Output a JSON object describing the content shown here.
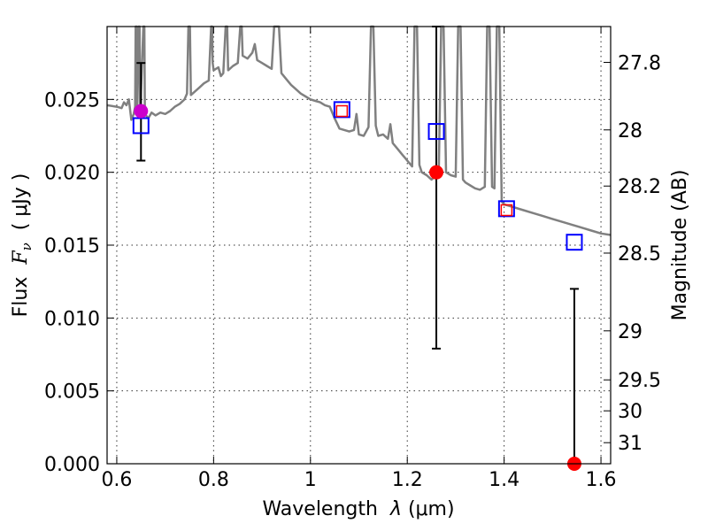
{
  "chart_data": {
    "type": "scatter",
    "xlabel_prefix": "Wavelength  ",
    "xlabel_symbol": "λ",
    "xlabel_unit": " (μm)",
    "ylabel_prefix": "Flux  ",
    "ylabel_symbol": "F",
    "ylabel_sub": "ν",
    "ylabel_unit": "  ( μJy )",
    "y2label": "Magnitude (AB)",
    "xlim": [
      0.58,
      1.62
    ],
    "ylim": [
      0.0,
      0.03
    ],
    "xticks": [
      0.6,
      0.8,
      1.0,
      1.2,
      1.4,
      1.6
    ],
    "xtick_labels": [
      "0.6",
      "0.8",
      "1",
      "1.2",
      "1.4",
      "1.6"
    ],
    "yticks": [
      0.0,
      0.005,
      0.01,
      0.015,
      0.02,
      0.025
    ],
    "ytick_labels": [
      "0.000",
      "0.005",
      "0.010",
      "0.015",
      "0.020",
      "0.025"
    ],
    "mag_ticks": [
      27.8,
      28.0,
      28.2,
      28.5,
      29.0,
      29.5,
      30.0,
      31.0
    ],
    "mag_tick_labels": [
      "27.8",
      "28",
      "28.2",
      "28.5",
      "29",
      "29.5",
      "30",
      "31"
    ],
    "grid": true,
    "template_spectrum": {
      "color": "#808080",
      "points": [
        [
          0.58,
          0.0246
        ],
        [
          0.6,
          0.0245
        ],
        [
          0.61,
          0.0244
        ],
        [
          0.615,
          0.0248
        ],
        [
          0.62,
          0.0246
        ],
        [
          0.625,
          0.025
        ],
        [
          0.63,
          0.0236
        ],
        [
          0.635,
          0.024
        ],
        [
          0.638,
          0.0245
        ],
        [
          0.639,
          0.03
        ],
        [
          0.641,
          0.03
        ],
        [
          0.642,
          0.024
        ],
        [
          0.645,
          0.03
        ],
        [
          0.647,
          0.03
        ],
        [
          0.648,
          0.0238
        ],
        [
          0.655,
          0.03
        ],
        [
          0.657,
          0.03
        ],
        [
          0.658,
          0.024
        ],
        [
          0.665,
          0.0237
        ],
        [
          0.672,
          0.0241
        ],
        [
          0.68,
          0.0239
        ],
        [
          0.69,
          0.0241
        ],
        [
          0.7,
          0.024
        ],
        [
          0.71,
          0.0242
        ],
        [
          0.72,
          0.0245
        ],
        [
          0.73,
          0.0247
        ],
        [
          0.74,
          0.025
        ],
        [
          0.745,
          0.0254
        ],
        [
          0.748,
          0.03
        ],
        [
          0.751,
          0.03
        ],
        [
          0.753,
          0.0253
        ],
        [
          0.76,
          0.0255
        ],
        [
          0.77,
          0.0258
        ],
        [
          0.78,
          0.0261
        ],
        [
          0.79,
          0.0263
        ],
        [
          0.795,
          0.03
        ],
        [
          0.797,
          0.03
        ],
        [
          0.798,
          0.0275
        ],
        [
          0.8,
          0.027
        ],
        [
          0.81,
          0.0272
        ],
        [
          0.815,
          0.0266
        ],
        [
          0.82,
          0.0268
        ],
        [
          0.825,
          0.03
        ],
        [
          0.828,
          0.03
        ],
        [
          0.83,
          0.027
        ],
        [
          0.84,
          0.0273
        ],
        [
          0.85,
          0.0275
        ],
        [
          0.855,
          0.03
        ],
        [
          0.858,
          0.03
        ],
        [
          0.86,
          0.028
        ],
        [
          0.87,
          0.0278
        ],
        [
          0.88,
          0.0282
        ],
        [
          0.885,
          0.0288
        ],
        [
          0.89,
          0.0277
        ],
        [
          0.9,
          0.0275
        ],
        [
          0.91,
          0.0273
        ],
        [
          0.92,
          0.0271
        ],
        [
          0.925,
          0.03
        ],
        [
          0.93,
          0.03
        ],
        [
          0.935,
          0.03
        ],
        [
          0.94,
          0.0268
        ],
        [
          0.95,
          0.0264
        ],
        [
          0.96,
          0.026
        ],
        [
          0.97,
          0.0257
        ],
        [
          0.98,
          0.0254
        ],
        [
          0.99,
          0.0252
        ],
        [
          1.0,
          0.025
        ],
        [
          1.01,
          0.0249
        ],
        [
          1.02,
          0.0248
        ],
        [
          1.03,
          0.0246
        ],
        [
          1.04,
          0.0245
        ],
        [
          1.05,
          0.0237
        ],
        [
          1.06,
          0.023
        ],
        [
          1.07,
          0.0229
        ],
        [
          1.08,
          0.0228
        ],
        [
          1.09,
          0.0229
        ],
        [
          1.095,
          0.024
        ],
        [
          1.1,
          0.0226
        ],
        [
          1.11,
          0.0225
        ],
        [
          1.12,
          0.0231
        ],
        [
          1.125,
          0.03
        ],
        [
          1.13,
          0.03
        ],
        [
          1.135,
          0.0232
        ],
        [
          1.14,
          0.0225
        ],
        [
          1.15,
          0.0226
        ],
        [
          1.16,
          0.0223
        ],
        [
          1.165,
          0.0233
        ],
        [
          1.17,
          0.022
        ],
        [
          1.18,
          0.0216
        ],
        [
          1.19,
          0.0212
        ],
        [
          1.195,
          0.021
        ],
        [
          1.2,
          0.0208
        ],
        [
          1.21,
          0.0204
        ],
        [
          1.215,
          0.03
        ],
        [
          1.22,
          0.03
        ],
        [
          1.225,
          0.0205
        ],
        [
          1.23,
          0.02
        ],
        [
          1.24,
          0.0198
        ],
        [
          1.25,
          0.0195
        ],
        [
          1.26,
          0.0198
        ],
        [
          1.265,
          0.02
        ],
        [
          1.27,
          0.03
        ],
        [
          1.275,
          0.03
        ],
        [
          1.28,
          0.02
        ],
        [
          1.29,
          0.0198
        ],
        [
          1.3,
          0.0197
        ],
        [
          1.305,
          0.03
        ],
        [
          1.31,
          0.03
        ],
        [
          1.315,
          0.0195
        ],
        [
          1.32,
          0.0193
        ],
        [
          1.33,
          0.0191
        ],
        [
          1.34,
          0.0189
        ],
        [
          1.35,
          0.0188
        ],
        [
          1.36,
          0.019
        ],
        [
          1.365,
          0.03
        ],
        [
          1.37,
          0.03
        ],
        [
          1.375,
          0.019
        ],
        [
          1.38,
          0.0189
        ],
        [
          1.385,
          0.03
        ],
        [
          1.39,
          0.03
        ],
        [
          1.395,
          0.018
        ],
        [
          1.4,
          0.0178
        ],
        [
          1.42,
          0.0176
        ],
        [
          1.44,
          0.0174
        ],
        [
          1.46,
          0.0172
        ],
        [
          1.48,
          0.017
        ],
        [
          1.5,
          0.0168
        ],
        [
          1.52,
          0.0166
        ],
        [
          1.54,
          0.0164
        ],
        [
          1.56,
          0.0162
        ],
        [
          1.58,
          0.016
        ],
        [
          1.6,
          0.0158
        ],
        [
          1.62,
          0.0157
        ]
      ]
    },
    "model_photometry": {
      "marker": "open-square",
      "color": "#0000ff",
      "points": [
        [
          0.65,
          0.0232
        ],
        [
          1.065,
          0.0243
        ],
        [
          1.26,
          0.0228
        ],
        [
          1.405,
          0.0175
        ],
        [
          1.545,
          0.0152
        ]
      ]
    },
    "observed_points": [
      {
        "x": 0.65,
        "y": 0.0242,
        "yerr_low": 0.0034,
        "yerr_high": 0.0033,
        "color": "#cc00cc",
        "marker": "filled-circle"
      },
      {
        "x": 1.065,
        "y": 0.0242,
        "color": "#ff0000",
        "marker": "small-open-square"
      },
      {
        "x": 1.26,
        "y": 0.02,
        "yerr_low": 0.0121,
        "yerr_high": 0.013,
        "color": "#ff0000",
        "marker": "filled-circle"
      },
      {
        "x": 1.405,
        "y": 0.0174,
        "color": "#ff0000",
        "marker": "small-open-square"
      },
      {
        "x": 1.545,
        "y": 0.0,
        "yerr_low": 0.0,
        "yerr_high": 0.012,
        "color": "#ff0000",
        "marker": "filled-circle"
      }
    ]
  }
}
